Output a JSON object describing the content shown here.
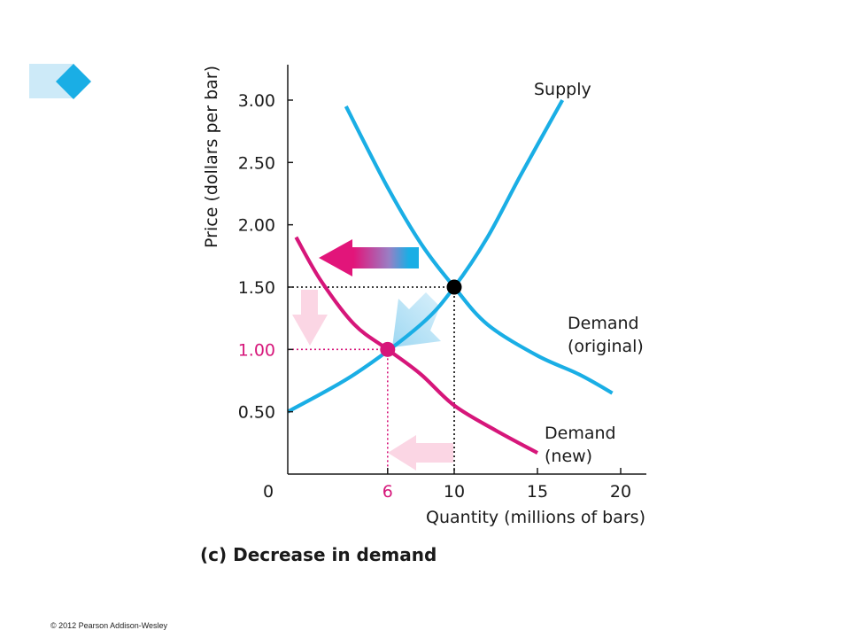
{
  "chart_data": {
    "type": "line",
    "caption": "(c) Decrease in demand",
    "xlabel": "Quantity (millions of bars)",
    "ylabel": "Price (dollars per bar)",
    "xlim": [
      0,
      22
    ],
    "ylim": [
      0,
      3.3
    ],
    "x_ticks": [
      {
        "value": 0,
        "label": "0",
        "color": "#1a1a1a"
      },
      {
        "value": 6,
        "label": "6",
        "color": "#d6167a"
      },
      {
        "value": 10,
        "label": "10",
        "color": "#1a1a1a"
      },
      {
        "value": 15,
        "label": "15",
        "color": "#1a1a1a"
      },
      {
        "value": 20,
        "label": "20",
        "color": "#1a1a1a"
      }
    ],
    "y_ticks": [
      {
        "value": 0.5,
        "label": "0.50",
        "color": "#1a1a1a"
      },
      {
        "value": 1.0,
        "label": "1.00",
        "color": "#d6167a"
      },
      {
        "value": 1.5,
        "label": "1.50",
        "color": "#1a1a1a"
      },
      {
        "value": 2.0,
        "label": "2.00",
        "color": "#1a1a1a"
      },
      {
        "value": 2.5,
        "label": "2.50",
        "color": "#1a1a1a"
      },
      {
        "value": 3.0,
        "label": "3.00",
        "color": "#1a1a1a"
      }
    ],
    "series": [
      {
        "name": "Supply",
        "label_lines": [
          "Supply"
        ],
        "color": "#1aaee5",
        "points": [
          [
            0,
            0.5
          ],
          [
            4,
            0.8
          ],
          [
            8,
            1.2
          ],
          [
            10,
            1.5
          ],
          [
            12,
            1.9
          ],
          [
            14,
            2.4
          ],
          [
            16.5,
            3.0
          ]
        ]
      },
      {
        "name": "Demand (original)",
        "label_lines": [
          "Demand",
          "(original)"
        ],
        "color": "#1aaee5",
        "points": [
          [
            3.5,
            2.95
          ],
          [
            6,
            2.3
          ],
          [
            8,
            1.85
          ],
          [
            10,
            1.5
          ],
          [
            12,
            1.2
          ],
          [
            15,
            0.95
          ],
          [
            17.5,
            0.8
          ],
          [
            19.5,
            0.65
          ]
        ]
      },
      {
        "name": "Demand (new)",
        "label_lines": [
          "Demand",
          "(new)"
        ],
        "color": "#d6167a",
        "points": [
          [
            0.5,
            1.9
          ],
          [
            2,
            1.55
          ],
          [
            4,
            1.2
          ],
          [
            6,
            1.0
          ],
          [
            8,
            0.8
          ],
          [
            10,
            0.55
          ],
          [
            12.5,
            0.35
          ],
          [
            15,
            0.17
          ]
        ]
      }
    ],
    "equilibria": [
      {
        "x": 10,
        "y": 1.5,
        "color": "#000000"
      },
      {
        "x": 6,
        "y": 1.0,
        "color": "#d6167a"
      }
    ]
  },
  "copyright": "© 2012 Pearson Addison-Wesley"
}
